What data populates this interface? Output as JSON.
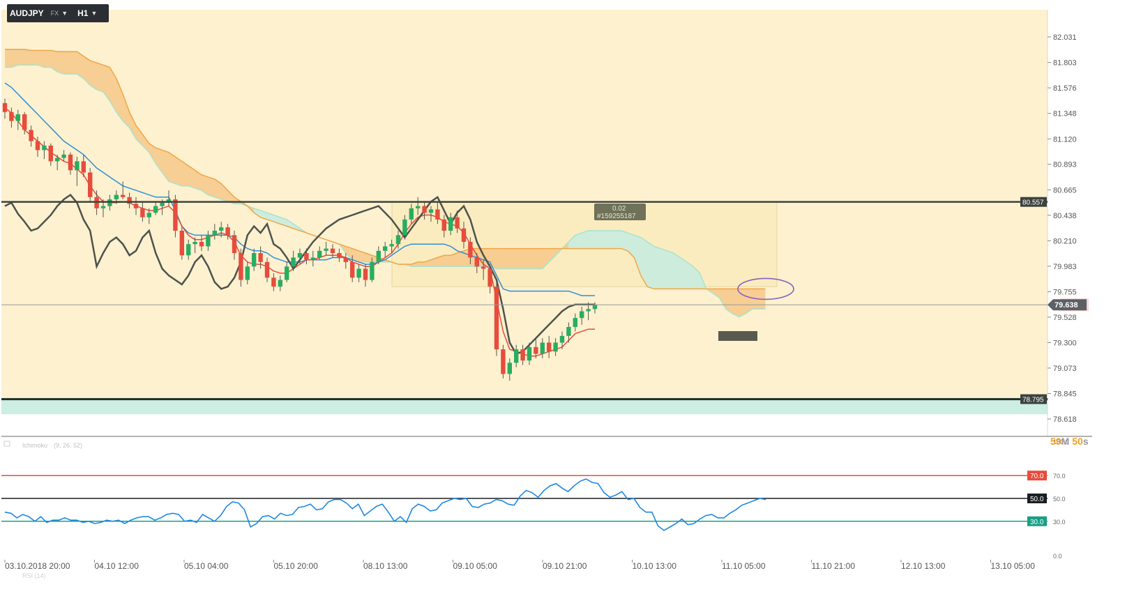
{
  "toolbar": {
    "symbol": "AUDJPY",
    "market": "FX",
    "timeframe": "H1",
    "symbol_menu_icon": "chevron-down-icon",
    "timeframe_menu_icon": "chevron-down-icon"
  },
  "timer": {
    "minutes": "59",
    "m_label": "M",
    "seconds": "50",
    "s_label": "s"
  },
  "chart_data": [
    {
      "type": "candlestick",
      "symbol": "AUDJPY",
      "timeframe": "H1",
      "y_ticks": [
        "82.031",
        "81.803",
        "81.576",
        "81.348",
        "81.120",
        "80.893",
        "80.665",
        "80.438",
        "80.210",
        "79.983",
        "79.755",
        "79.528",
        "79.300",
        "79.073",
        "78.845",
        "78.618",
        "78.390"
      ],
      "ylim": [
        78.39,
        82.031
      ],
      "x_ticks": [
        "03.10.2018  20:00",
        "04.10  12:00",
        "05.10  04:00",
        "05.10  20:00",
        "08.10  13:00",
        "09.10  05:00",
        "09.10  21:00",
        "10.10  13:00",
        "11.10  05:00",
        "11.10  21:00",
        "12.10  13:00",
        "13.10  05:00"
      ],
      "horizontal_levels": [
        {
          "label": "80.557",
          "value": 80.557,
          "color": "#3d443d"
        },
        {
          "label": "78.795",
          "value": 78.795,
          "color": "#1e2e2a"
        }
      ],
      "current_price": {
        "label": "79.638",
        "value": 79.638
      },
      "order_label": {
        "line1": "0.02",
        "line2": "#159255187"
      },
      "indicator": {
        "name": "Ichimoku",
        "params": "(9, 26, 52)"
      },
      "colors": {
        "up": "#27ae60",
        "down": "#e74c3c",
        "tenkan": "#e74c3c",
        "kijun": "#2f8fd8",
        "chikou": "#4d524d",
        "cloud_bear": "#f6c88a",
        "cloud_bull": "#c6ece0",
        "span_a": "#f0a646",
        "span_b": "#a9e2cf",
        "zone_fill": "#fdf1cf",
        "green_zone": "#cdeee2"
      },
      "candles_ohlc": [
        [
          81.44,
          81.48,
          81.3,
          81.36
        ],
        [
          81.36,
          81.4,
          81.22,
          81.28
        ],
        [
          81.28,
          81.38,
          81.2,
          81.34
        ],
        [
          81.34,
          81.36,
          81.16,
          81.2
        ],
        [
          81.2,
          81.24,
          81.05,
          81.1
        ],
        [
          81.1,
          81.14,
          80.96,
          81.02
        ],
        [
          81.02,
          81.1,
          80.94,
          81.06
        ],
        [
          81.06,
          81.08,
          80.88,
          80.92
        ],
        [
          80.92,
          80.98,
          80.84,
          80.95
        ],
        [
          80.95,
          81.02,
          80.92,
          80.98
        ],
        [
          80.98,
          81.0,
          80.8,
          80.84
        ],
        [
          80.84,
          80.96,
          80.7,
          80.92
        ],
        [
          80.92,
          80.98,
          80.78,
          80.82
        ],
        [
          80.82,
          80.86,
          80.56,
          80.6
        ],
        [
          80.6,
          80.66,
          80.44,
          80.5
        ],
        [
          80.5,
          80.58,
          80.42,
          80.52
        ],
        [
          80.52,
          80.62,
          80.48,
          80.58
        ],
        [
          80.58,
          80.66,
          80.54,
          80.62
        ],
        [
          80.62,
          80.74,
          80.58,
          80.6
        ],
        [
          80.6,
          80.64,
          80.5,
          80.54
        ],
        [
          80.54,
          80.6,
          80.44,
          80.5
        ],
        [
          80.5,
          80.56,
          80.38,
          80.42
        ],
        [
          80.42,
          80.5,
          80.36,
          80.46
        ],
        [
          80.46,
          80.56,
          80.44,
          80.52
        ],
        [
          80.52,
          80.58,
          80.44,
          80.55
        ],
        [
          80.55,
          80.66,
          80.52,
          80.58
        ],
        [
          80.58,
          80.62,
          80.24,
          80.3
        ],
        [
          80.3,
          80.34,
          80.04,
          80.08
        ],
        [
          80.08,
          80.22,
          80.04,
          80.18
        ],
        [
          80.18,
          80.24,
          80.1,
          80.2
        ],
        [
          80.2,
          80.26,
          80.12,
          80.16
        ],
        [
          80.16,
          80.3,
          80.12,
          80.26
        ],
        [
          80.26,
          80.36,
          80.22,
          80.3
        ],
        [
          80.3,
          80.38,
          80.24,
          80.33
        ],
        [
          80.33,
          80.36,
          80.22,
          80.26
        ],
        [
          80.26,
          80.3,
          80.04,
          80.1
        ],
        [
          80.1,
          80.14,
          79.8,
          79.86
        ],
        [
          79.86,
          80.02,
          79.82,
          79.98
        ],
        [
          79.98,
          80.14,
          79.94,
          80.1
        ],
        [
          80.1,
          80.16,
          79.96,
          80.02
        ],
        [
          80.02,
          80.06,
          79.84,
          79.88
        ],
        [
          79.88,
          79.92,
          79.76,
          79.8
        ],
        [
          79.8,
          79.9,
          79.76,
          79.86
        ],
        [
          79.86,
          80.02,
          79.84,
          79.98
        ],
        [
          79.98,
          80.12,
          79.94,
          80.06
        ],
        [
          80.06,
          80.14,
          80.0,
          80.1
        ],
        [
          80.1,
          80.14,
          80.0,
          80.04
        ],
        [
          80.04,
          80.12,
          79.98,
          80.06
        ],
        [
          80.06,
          80.16,
          80.04,
          80.12
        ],
        [
          80.12,
          80.2,
          80.08,
          80.14
        ],
        [
          80.14,
          80.18,
          80.06,
          80.1
        ],
        [
          80.1,
          80.14,
          80.02,
          80.06
        ],
        [
          80.06,
          80.1,
          79.96,
          80.02
        ],
        [
          80.02,
          80.08,
          79.84,
          79.88
        ],
        [
          79.88,
          80.0,
          79.84,
          79.96
        ],
        [
          79.96,
          80.0,
          79.8,
          79.86
        ],
        [
          79.86,
          80.06,
          79.84,
          80.02
        ],
        [
          80.02,
          80.16,
          80.0,
          80.12
        ],
        [
          80.12,
          80.2,
          80.06,
          80.16
        ],
        [
          80.16,
          80.22,
          80.1,
          80.18
        ],
        [
          80.18,
          80.3,
          80.14,
          80.26
        ],
        [
          80.26,
          80.44,
          80.22,
          80.4
        ],
        [
          80.4,
          80.54,
          80.36,
          80.5
        ],
        [
          80.5,
          80.6,
          80.44,
          80.52
        ],
        [
          80.52,
          80.56,
          80.4,
          80.46
        ],
        [
          80.46,
          80.52,
          80.38,
          80.49
        ],
        [
          80.49,
          80.55,
          80.36,
          80.4
        ],
        [
          80.4,
          80.44,
          80.24,
          80.3
        ],
        [
          80.3,
          80.46,
          80.26,
          80.42
        ],
        [
          80.42,
          80.48,
          80.28,
          80.32
        ],
        [
          80.32,
          80.38,
          80.14,
          80.2
        ],
        [
          80.2,
          80.24,
          80.0,
          80.06
        ],
        [
          80.06,
          80.1,
          79.92,
          79.98
        ],
        [
          79.98,
          80.04,
          79.86,
          79.96
        ],
        [
          79.96,
          80.0,
          79.74,
          79.8
        ],
        [
          79.8,
          79.84,
          79.18,
          79.24
        ],
        [
          79.24,
          79.28,
          78.98,
          79.02
        ],
        [
          79.02,
          79.16,
          78.96,
          79.12
        ],
        [
          79.12,
          79.28,
          79.08,
          79.24
        ],
        [
          79.24,
          79.28,
          79.1,
          79.14
        ],
        [
          79.14,
          79.3,
          79.1,
          79.26
        ],
        [
          79.26,
          79.34,
          79.16,
          79.2
        ],
        [
          79.2,
          79.34,
          79.16,
          79.3
        ],
        [
          79.3,
          79.36,
          79.16,
          79.22
        ],
        [
          79.22,
          79.34,
          79.18,
          79.3
        ],
        [
          79.3,
          79.4,
          79.24,
          79.36
        ],
        [
          79.36,
          79.48,
          79.3,
          79.44
        ],
        [
          79.44,
          79.56,
          79.4,
          79.52
        ],
        [
          79.52,
          79.62,
          79.46,
          79.58
        ],
        [
          79.58,
          79.66,
          79.5,
          79.6
        ],
        [
          79.6,
          79.66,
          79.56,
          79.638
        ]
      ],
      "tenkan": [
        81.4,
        81.35,
        81.28,
        81.2,
        81.15,
        81.1,
        81.05,
        81.0,
        80.96,
        80.92,
        80.9,
        80.85,
        80.8,
        80.7,
        80.62,
        80.56,
        80.55,
        80.55,
        80.56,
        80.55,
        80.52,
        80.5,
        80.48,
        80.48,
        80.5,
        80.52,
        80.46,
        80.34,
        80.26,
        80.22,
        80.22,
        80.24,
        80.26,
        80.28,
        80.26,
        80.2,
        80.08,
        80.02,
        80.0,
        80.0,
        79.98,
        79.94,
        79.92,
        79.92,
        79.96,
        80.0,
        80.04,
        80.04,
        80.06,
        80.08,
        80.08,
        80.08,
        80.06,
        80.02,
        80.0,
        79.98,
        79.98,
        80.02,
        80.06,
        80.1,
        80.18,
        80.28,
        80.36,
        80.42,
        80.44,
        80.44,
        80.42,
        80.38,
        80.36,
        80.34,
        80.28,
        80.18,
        80.08,
        80.0,
        79.96,
        79.68,
        79.4,
        79.24,
        79.22,
        79.2,
        79.18,
        79.18,
        79.2,
        79.22,
        79.24,
        79.26,
        79.32,
        79.38,
        79.4,
        79.42,
        79.42
      ],
      "kijun": [
        81.62,
        81.58,
        81.52,
        81.46,
        81.4,
        81.34,
        81.28,
        81.22,
        81.16,
        81.1,
        81.06,
        81.02,
        80.98,
        80.92,
        80.86,
        80.82,
        80.78,
        80.74,
        80.7,
        80.68,
        80.66,
        80.64,
        80.62,
        80.6,
        80.6,
        80.6,
        80.48,
        80.34,
        80.28,
        80.26,
        80.26,
        80.26,
        80.26,
        80.26,
        80.26,
        80.24,
        80.18,
        80.14,
        80.12,
        80.12,
        80.1,
        80.06,
        80.04,
        80.02,
        80.02,
        80.02,
        80.04,
        80.04,
        80.04,
        80.04,
        80.06,
        80.06,
        80.06,
        80.04,
        80.02,
        80.0,
        80.0,
        80.02,
        80.04,
        80.08,
        80.12,
        80.16,
        80.18,
        80.18,
        80.18,
        80.18,
        80.18,
        80.18,
        80.16,
        80.12,
        80.1,
        80.08,
        80.06,
        80.04,
        80.02,
        79.9,
        79.78,
        79.76,
        79.76,
        79.76,
        79.76,
        79.76,
        79.76,
        79.76,
        79.76,
        79.76,
        79.76,
        79.74,
        79.72,
        79.72,
        79.72
      ],
      "chikou": [
        80.52,
        80.55,
        80.45,
        80.38,
        80.3,
        80.32,
        80.38,
        80.44,
        80.52,
        80.58,
        80.62,
        80.55,
        80.4,
        80.3,
        79.98,
        80.1,
        80.2,
        80.24,
        80.18,
        80.08,
        80.12,
        80.24,
        80.3,
        80.1,
        79.96,
        79.9,
        79.86,
        79.82,
        79.9,
        80.02,
        80.08,
        79.98,
        79.84,
        79.78,
        79.8,
        79.88,
        80.02,
        80.26,
        80.34,
        80.28,
        80.36,
        80.18,
        80.14,
        80.06,
        79.96,
        80.04,
        80.12,
        80.2,
        80.26,
        80.32,
        80.36,
        80.4,
        80.42,
        80.44,
        80.46,
        80.48,
        80.5,
        80.52,
        80.46,
        80.4,
        80.32,
        80.24,
        80.32,
        80.4,
        80.48,
        80.56,
        80.6,
        80.48,
        80.36,
        80.46,
        80.52,
        80.4,
        80.2,
        80.08,
        79.98,
        79.86,
        79.6,
        79.3,
        79.2,
        79.22,
        79.28,
        79.34,
        79.4,
        79.46,
        79.52,
        79.58,
        79.62,
        79.64,
        79.64,
        79.64,
        79.64
      ],
      "span_a": [
        81.92,
        81.92,
        81.92,
        81.92,
        81.91,
        81.91,
        81.91,
        81.91,
        81.9,
        81.9,
        81.9,
        81.9,
        81.86,
        81.82,
        81.8,
        81.78,
        81.76,
        81.66,
        81.52,
        81.36,
        81.24,
        81.16,
        81.08,
        81.04,
        81.02,
        81.0,
        80.96,
        80.92,
        80.88,
        80.84,
        80.8,
        80.78,
        80.76,
        80.72,
        80.66,
        80.6,
        80.56,
        80.52,
        80.46,
        80.42,
        80.4,
        80.38,
        80.36,
        80.34,
        80.32,
        80.3,
        80.28,
        80.26,
        80.24,
        80.22,
        80.2,
        80.18,
        80.16,
        80.14,
        80.12,
        80.1,
        80.08,
        80.06,
        80.04,
        80.02,
        80.0,
        80.0,
        80.0,
        80.02,
        80.02,
        80.04,
        80.06,
        80.08,
        80.08,
        80.1,
        80.12,
        80.14,
        80.14,
        80.14,
        80.14,
        80.14,
        80.14,
        80.14,
        80.14,
        80.14,
        80.14,
        80.14,
        80.14,
        80.14,
        80.14,
        80.14,
        80.14,
        80.14,
        80.14,
        80.14,
        80.14,
        80.14,
        80.14,
        80.14,
        80.14,
        80.12,
        80.06,
        79.9,
        79.8,
        79.78,
        79.78,
        79.78,
        79.78,
        79.78,
        79.78,
        79.78,
        79.78,
        79.78,
        79.78,
        79.78,
        79.78,
        79.78,
        79.78,
        79.78,
        79.78,
        79.78,
        79.78
      ],
      "span_b": [
        81.76,
        81.76,
        81.78,
        81.78,
        81.78,
        81.78,
        81.76,
        81.76,
        81.72,
        81.7,
        81.7,
        81.7,
        81.66,
        81.6,
        81.56,
        81.54,
        81.46,
        81.36,
        81.28,
        81.22,
        81.12,
        81.06,
        81.0,
        80.9,
        80.82,
        80.74,
        80.72,
        80.7,
        80.7,
        80.68,
        80.66,
        80.62,
        80.6,
        80.58,
        80.56,
        80.54,
        80.54,
        80.52,
        80.5,
        80.48,
        80.46,
        80.44,
        80.42,
        80.4,
        80.36,
        80.32,
        80.28,
        80.26,
        80.24,
        80.22,
        80.2,
        80.18,
        80.1,
        80.04,
        80.02,
        80.02,
        80.02,
        80.02,
        80.02,
        80.02,
        80.0,
        80.0,
        79.98,
        79.98,
        79.98,
        79.98,
        79.98,
        79.98,
        79.98,
        79.98,
        79.98,
        79.98,
        79.98,
        79.98,
        79.98,
        79.96,
        79.96,
        79.96,
        79.96,
        79.96,
        79.96,
        79.96,
        79.96,
        80.02,
        80.08,
        80.14,
        80.2,
        80.26,
        80.28,
        80.3,
        80.3,
        80.3,
        80.3,
        80.3,
        80.3,
        80.28,
        80.26,
        80.24,
        80.2,
        80.16,
        80.14,
        80.12,
        80.1,
        80.06,
        80.02,
        79.98,
        79.92,
        79.78,
        79.74,
        79.7,
        79.6,
        79.56,
        79.53,
        79.56,
        79.6,
        79.6,
        79.6
      ]
    },
    {
      "type": "line",
      "name": "RSI",
      "label": "RSI (14)",
      "y_ticks": [
        "100.0",
        "70.0",
        "50.0",
        "30.0",
        "0.0"
      ],
      "ylim": [
        0,
        100
      ],
      "levels": [
        {
          "label": "70.0",
          "value": 70,
          "color": "#e74c3c"
        },
        {
          "label": "50.0",
          "value": 50,
          "color": "#1b1f21"
        },
        {
          "label": "30.0",
          "value": 30,
          "color": "#16a085"
        }
      ],
      "values": [
        38,
        37,
        33,
        36,
        34,
        30,
        34,
        29,
        31,
        31,
        33,
        31,
        31,
        29,
        30,
        28,
        29,
        31,
        30,
        31,
        28,
        31,
        33,
        34,
        34,
        31,
        33,
        36,
        37,
        36,
        30,
        31,
        29,
        36,
        33,
        30,
        35,
        43,
        47,
        46,
        40,
        25,
        28,
        34,
        35,
        32,
        37,
        35,
        36,
        42,
        43,
        45,
        40,
        41,
        47,
        49,
        49,
        46,
        41,
        45,
        35,
        39,
        43,
        45,
        38,
        30,
        34,
        29,
        41,
        45,
        43,
        39,
        40,
        46,
        48,
        50,
        49,
        50,
        43,
        42,
        45,
        46,
        49,
        48,
        45,
        44,
        52,
        57,
        55,
        51,
        57,
        61,
        63,
        59,
        56,
        61,
        65,
        67,
        64,
        63,
        55,
        51,
        53,
        56,
        49,
        50,
        42,
        38,
        38,
        26,
        22,
        25,
        28,
        32,
        27,
        28,
        32,
        35,
        36,
        33,
        33,
        37,
        40,
        44,
        46,
        48,
        50,
        49
      ]
    }
  ]
}
